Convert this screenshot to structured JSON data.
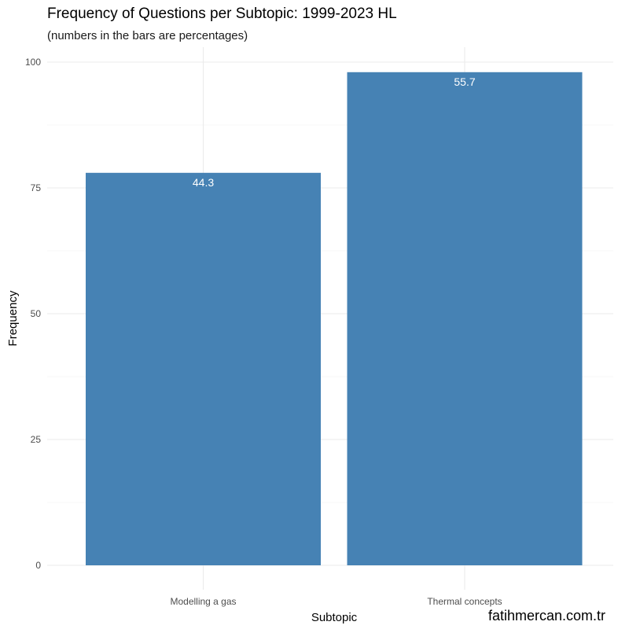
{
  "chart_data": {
    "type": "bar",
    "title": "Frequency of Questions per Subtopic: 1999-2023 HL",
    "subtitle": "(numbers in the bars are percentages)",
    "xlabel": "Subtopic",
    "ylabel": "Frequency",
    "categories": [
      "Modelling a gas",
      "Thermal concepts"
    ],
    "values": [
      78,
      98
    ],
    "percent_labels": [
      "44.3",
      "55.7"
    ],
    "ylim": [
      0,
      100
    ],
    "yticks": [
      0,
      25,
      50,
      75,
      100
    ],
    "y_minor_ticks": [
      12.5,
      37.5,
      62.5,
      87.5
    ],
    "bar_color": "#4682B4",
    "grid": true
  },
  "watermark": "fatihmercan.com.tr"
}
